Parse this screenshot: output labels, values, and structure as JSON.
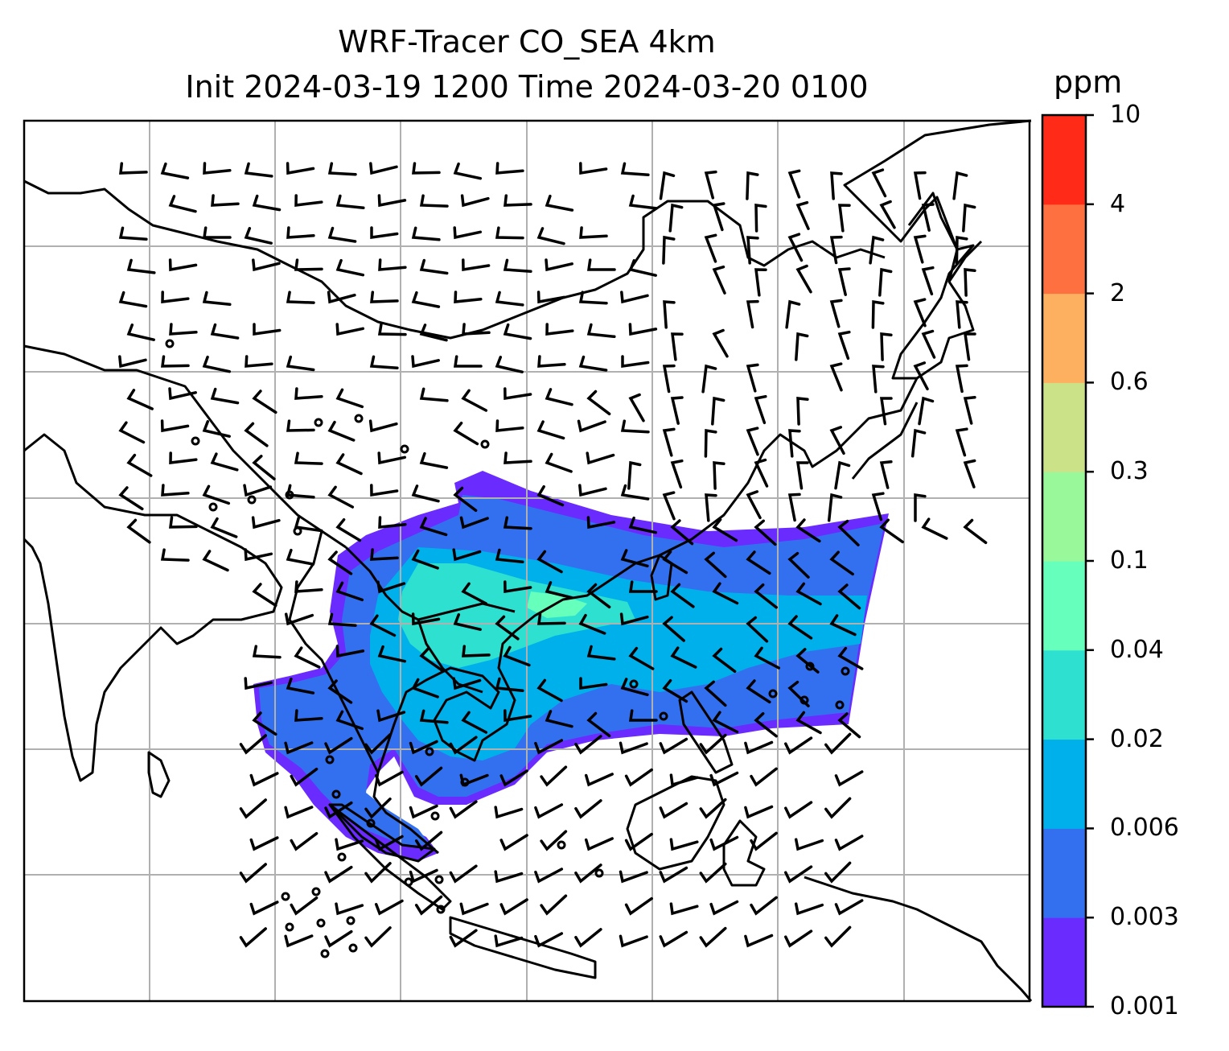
{
  "title": "WRF-Tracer CO_SEA 4km",
  "subtitle": "Init 2024-03-19 1200 Time 2024-03-20 0100",
  "colorbar": {
    "unit": "ppm",
    "levels": [
      "0.001",
      "0.003",
      "0.006",
      "0.02",
      "0.04",
      "0.1",
      "0.3",
      "0.6",
      "2",
      "4",
      "10"
    ],
    "colors": [
      "#6a2bff",
      "#3370f0",
      "#00b0eb",
      "#2de0d0",
      "#66ffbb",
      "#99f899",
      "#cce288",
      "#fdb060",
      "#ff7040",
      "#ff2a18"
    ]
  },
  "map": {
    "field": "CO tracer concentration",
    "overlays": [
      "coastlines",
      "borders",
      "gridlines",
      "wind-barbs"
    ]
  }
}
